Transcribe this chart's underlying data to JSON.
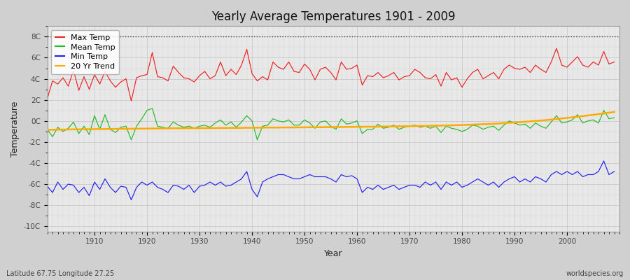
{
  "title": "Yearly Average Temperatures 1901 - 2009",
  "xlabel": "Year",
  "ylabel": "Temperature",
  "lat_lon_label": "Latitude 67.75 Longitude 27.25",
  "source_label": "worldspecies.org",
  "ylim": [
    -10.5,
    9
  ],
  "yticks": [
    -10,
    -8,
    -6,
    -4,
    -2,
    0,
    2,
    4,
    6,
    8
  ],
  "ytick_labels": [
    "-10C",
    "-8C",
    "-6C",
    "-4C",
    "-2C",
    "0C",
    "2C",
    "4C",
    "6C",
    "8C"
  ],
  "dotted_line_y": 8,
  "fig_bg_color": "#d0d0d0",
  "plot_bg_color": "#e8e8e8",
  "max_color": "#ee2222",
  "mean_color": "#22bb22",
  "min_color": "#2222ee",
  "trend_color": "#ffaa00",
  "years": [
    1901,
    1902,
    1903,
    1904,
    1905,
    1906,
    1907,
    1908,
    1909,
    1910,
    1911,
    1912,
    1913,
    1914,
    1915,
    1916,
    1917,
    1918,
    1919,
    1920,
    1921,
    1922,
    1923,
    1924,
    1925,
    1926,
    1927,
    1928,
    1929,
    1930,
    1931,
    1932,
    1933,
    1934,
    1935,
    1936,
    1937,
    1938,
    1939,
    1940,
    1941,
    1942,
    1943,
    1944,
    1945,
    1946,
    1947,
    1948,
    1949,
    1950,
    1951,
    1952,
    1953,
    1954,
    1955,
    1956,
    1957,
    1958,
    1959,
    1960,
    1961,
    1962,
    1963,
    1964,
    1965,
    1966,
    1967,
    1968,
    1969,
    1970,
    1971,
    1972,
    1973,
    1974,
    1975,
    1976,
    1977,
    1978,
    1979,
    1980,
    1981,
    1982,
    1983,
    1984,
    1985,
    1986,
    1987,
    1988,
    1989,
    1990,
    1991,
    1992,
    1993,
    1994,
    1995,
    1996,
    1997,
    1998,
    1999,
    2000,
    2001,
    2002,
    2003,
    2004,
    2005,
    2006,
    2007,
    2008,
    2009
  ],
  "max_temp": [
    2.1,
    3.8,
    3.5,
    4.1,
    3.3,
    4.8,
    2.9,
    4.2,
    3.0,
    4.4,
    3.5,
    4.7,
    3.8,
    3.2,
    3.7,
    4.0,
    1.9,
    4.1,
    4.3,
    4.4,
    6.5,
    4.2,
    4.1,
    3.8,
    5.2,
    4.6,
    4.1,
    4.0,
    3.7,
    4.3,
    4.7,
    4.0,
    4.3,
    5.6,
    4.3,
    4.9,
    4.4,
    5.3,
    6.8,
    4.5,
    3.8,
    4.2,
    3.9,
    5.6,
    5.1,
    4.9,
    5.6,
    4.7,
    4.6,
    5.4,
    4.9,
    3.9,
    4.9,
    5.1,
    4.6,
    3.9,
    5.6,
    4.9,
    5.0,
    5.3,
    3.4,
    4.3,
    4.2,
    4.6,
    4.1,
    4.3,
    4.6,
    3.9,
    4.2,
    4.3,
    4.9,
    4.6,
    4.1,
    4.0,
    4.4,
    3.3,
    4.6,
    3.9,
    4.1,
    3.2,
    4.0,
    4.6,
    4.9,
    4.0,
    4.3,
    4.6,
    4.0,
    4.9,
    5.3,
    5.0,
    4.9,
    5.1,
    4.6,
    5.3,
    4.9,
    4.6,
    5.6,
    6.9,
    5.3,
    5.1,
    5.6,
    6.1,
    5.3,
    5.1,
    5.6,
    5.3,
    6.6,
    5.4,
    5.6
  ],
  "mean_temp": [
    -0.8,
    -1.5,
    -0.6,
    -1.0,
    -0.7,
    -0.1,
    -1.2,
    -0.5,
    -1.3,
    0.5,
    -0.8,
    0.6,
    -0.8,
    -1.1,
    -0.6,
    -0.5,
    -1.8,
    -0.5,
    0.2,
    1.0,
    1.2,
    -0.5,
    -0.6,
    -0.7,
    -0.1,
    -0.4,
    -0.6,
    -0.5,
    -0.7,
    -0.5,
    -0.4,
    -0.6,
    -0.2,
    0.1,
    -0.4,
    -0.1,
    -0.6,
    -0.1,
    0.5,
    0.0,
    -1.8,
    -0.5,
    -0.4,
    0.2,
    0.0,
    -0.1,
    0.1,
    -0.4,
    -0.4,
    0.1,
    -0.2,
    -0.7,
    -0.1,
    0.0,
    -0.5,
    -0.8,
    0.2,
    -0.3,
    -0.2,
    0.0,
    -1.2,
    -0.8,
    -0.8,
    -0.3,
    -0.7,
    -0.6,
    -0.4,
    -0.8,
    -0.6,
    -0.5,
    -0.4,
    -0.6,
    -0.5,
    -0.7,
    -0.5,
    -1.1,
    -0.5,
    -0.7,
    -0.8,
    -1.0,
    -0.8,
    -0.4,
    -0.5,
    -0.8,
    -0.6,
    -0.5,
    -0.9,
    -0.4,
    0.0,
    -0.2,
    -0.4,
    -0.3,
    -0.7,
    -0.2,
    -0.5,
    -0.7,
    -0.1,
    0.5,
    -0.2,
    -0.1,
    0.1,
    0.6,
    -0.2,
    0.0,
    0.1,
    -0.2,
    1.0,
    0.2,
    0.3
  ],
  "min_temp": [
    -6.2,
    -6.8,
    -5.8,
    -6.5,
    -6.0,
    -6.1,
    -6.8,
    -6.3,
    -7.1,
    -5.8,
    -6.5,
    -5.5,
    -6.3,
    -6.8,
    -6.2,
    -6.3,
    -7.5,
    -6.3,
    -5.8,
    -6.1,
    -5.8,
    -6.3,
    -6.5,
    -6.8,
    -6.1,
    -6.2,
    -6.5,
    -6.1,
    -6.8,
    -6.2,
    -6.1,
    -5.8,
    -6.1,
    -5.8,
    -6.2,
    -6.1,
    -5.8,
    -5.5,
    -4.8,
    -6.5,
    -7.2,
    -5.8,
    -5.5,
    -5.3,
    -5.1,
    -5.1,
    -5.3,
    -5.5,
    -5.5,
    -5.3,
    -5.1,
    -5.3,
    -5.3,
    -5.3,
    -5.5,
    -5.8,
    -5.1,
    -5.3,
    -5.2,
    -5.5,
    -6.8,
    -6.3,
    -6.5,
    -6.1,
    -6.5,
    -6.3,
    -6.1,
    -6.5,
    -6.3,
    -6.1,
    -6.1,
    -6.3,
    -5.8,
    -6.1,
    -5.8,
    -6.5,
    -5.8,
    -6.1,
    -5.8,
    -6.3,
    -6.1,
    -5.8,
    -5.5,
    -5.8,
    -6.1,
    -5.8,
    -6.3,
    -5.8,
    -5.5,
    -5.3,
    -5.8,
    -5.5,
    -5.8,
    -5.3,
    -5.5,
    -5.8,
    -5.1,
    -4.8,
    -5.1,
    -4.8,
    -5.1,
    -4.8,
    -5.3,
    -5.1,
    -5.1,
    -4.8,
    -3.8,
    -5.1,
    -4.8
  ],
  "trend": [
    -0.85,
    -0.84,
    -0.83,
    -0.82,
    -0.81,
    -0.8,
    -0.8,
    -0.79,
    -0.78,
    -0.78,
    -0.77,
    -0.77,
    -0.76,
    -0.76,
    -0.75,
    -0.75,
    -0.74,
    -0.74,
    -0.73,
    -0.73,
    -0.72,
    -0.72,
    -0.71,
    -0.71,
    -0.7,
    -0.7,
    -0.7,
    -0.69,
    -0.69,
    -0.69,
    -0.68,
    -0.68,
    -0.68,
    -0.67,
    -0.67,
    -0.67,
    -0.66,
    -0.66,
    -0.65,
    -0.65,
    -0.64,
    -0.64,
    -0.63,
    -0.63,
    -0.63,
    -0.62,
    -0.62,
    -0.62,
    -0.61,
    -0.61,
    -0.6,
    -0.6,
    -0.6,
    -0.59,
    -0.59,
    -0.58,
    -0.58,
    -0.57,
    -0.57,
    -0.56,
    -0.56,
    -0.55,
    -0.55,
    -0.54,
    -0.53,
    -0.53,
    -0.52,
    -0.51,
    -0.51,
    -0.5,
    -0.49,
    -0.48,
    -0.47,
    -0.46,
    -0.45,
    -0.44,
    -0.43,
    -0.42,
    -0.4,
    -0.39,
    -0.37,
    -0.35,
    -0.33,
    -0.31,
    -0.29,
    -0.27,
    -0.24,
    -0.21,
    -0.18,
    -0.15,
    -0.12,
    -0.08,
    -0.04,
    0.0,
    0.04,
    0.08,
    0.13,
    0.18,
    0.23,
    0.29,
    0.34,
    0.4,
    0.46,
    0.52,
    0.58,
    0.65,
    0.71,
    0.78,
    0.85
  ]
}
